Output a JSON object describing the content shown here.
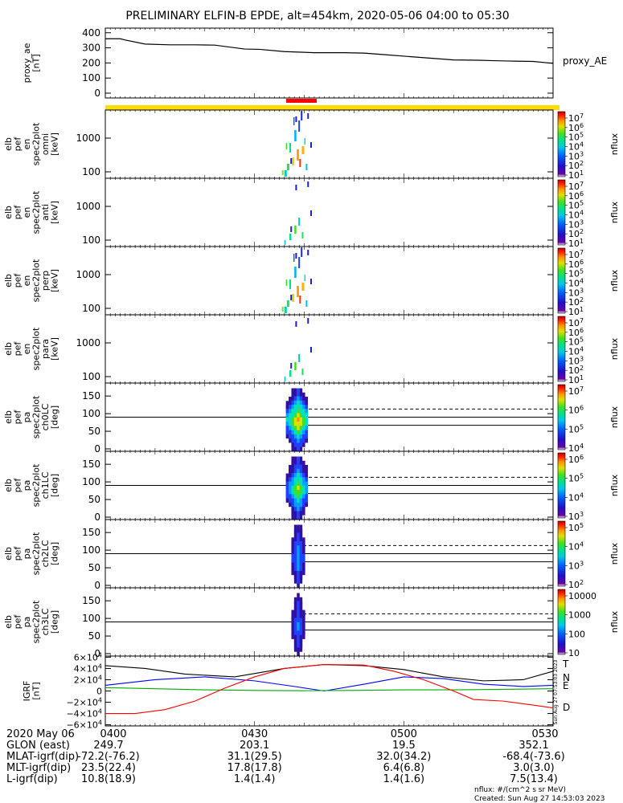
{
  "title": "PRELIMINARY ELFIN-B EPDE, alt=454km, 2020-05-06 04:00 to 05:30",
  "chart_data": [
    {
      "type": "line",
      "ylabel": [
        "proxy_ae",
        "[nT]"
      ],
      "side_label": "proxy_AE",
      "ylim": [
        0,
        420
      ],
      "yticks": [
        "400",
        "300",
        "200",
        "100",
        "0"
      ],
      "ytick_vals": [
        400,
        300,
        200,
        100,
        0
      ],
      "x": [
        0,
        3,
        4,
        8,
        13,
        18,
        22,
        28,
        31,
        36,
        42,
        48,
        52,
        56,
        62,
        66,
        70,
        75,
        78,
        82,
        86,
        90
      ],
      "values": [
        360,
        360,
        352,
        325,
        320,
        320,
        318,
        292,
        290,
        275,
        268,
        268,
        265,
        255,
        240,
        230,
        220,
        218,
        215,
        212,
        210,
        197
      ],
      "color": "#000000"
    },
    {
      "type": "heatmap",
      "ylabel": [
        "elb",
        "pef",
        "en",
        "spec2plot",
        "omni",
        "[keV]"
      ],
      "yticks": [
        "1000",
        "100"
      ],
      "colorbar_ticks": [
        "10^7",
        "10^6",
        "10^5",
        "10^4",
        "10^3",
        "10^2",
        "10^1"
      ],
      "colorbar_label": "nflux"
    },
    {
      "type": "heatmap",
      "ylabel": [
        "elb",
        "pef",
        "en",
        "spec2plot",
        "anti",
        "[keV]"
      ],
      "yticks": [
        "1000",
        "100"
      ],
      "colorbar_ticks": [
        "10^7",
        "10^6",
        "10^5",
        "10^4",
        "10^3",
        "10^2",
        "10^1"
      ],
      "colorbar_label": "nflux"
    },
    {
      "type": "heatmap",
      "ylabel": [
        "elb",
        "pef",
        "en",
        "spec2plot",
        "perp",
        "[keV]"
      ],
      "yticks": [
        "1000",
        "100"
      ],
      "colorbar_ticks": [
        "10^7",
        "10^6",
        "10^5",
        "10^4",
        "10^3",
        "10^2",
        "10^1"
      ],
      "colorbar_label": "nflux"
    },
    {
      "type": "heatmap",
      "ylabel": [
        "elb",
        "pef",
        "en",
        "spec2plot",
        "para",
        "[keV]"
      ],
      "yticks": [
        "1000",
        "100"
      ],
      "colorbar_ticks": [
        "10^7",
        "10^6",
        "10^5",
        "10^4",
        "10^3",
        "10^2",
        "10^1"
      ],
      "colorbar_label": "nflux"
    },
    {
      "type": "heatmap",
      "ylabel": [
        "elb",
        "pef",
        "pa",
        "spec2plot",
        "ch0LC",
        "[deg]"
      ],
      "yticks": [
        "150",
        "100",
        "50",
        "0"
      ],
      "colorbar_ticks": [
        "10^7",
        "10^6",
        "10^5",
        "10^4"
      ],
      "colorbar_label": "nflux"
    },
    {
      "type": "heatmap",
      "ylabel": [
        "elb",
        "pef",
        "pa",
        "spec2plot",
        "ch1LC",
        "[deg]"
      ],
      "yticks": [
        "150",
        "100",
        "50",
        "0"
      ],
      "colorbar_ticks": [
        "10^6",
        "10^5",
        "10^4",
        "10^3"
      ],
      "colorbar_label": "nflux"
    },
    {
      "type": "heatmap",
      "ylabel": [
        "elb",
        "pef",
        "pa",
        "spec2plot",
        "ch2LC",
        "[deg]"
      ],
      "yticks": [
        "150",
        "100",
        "50",
        "0"
      ],
      "colorbar_ticks": [
        "10^5",
        "10^4",
        "10^3",
        "10^2"
      ],
      "colorbar_label": "nflux"
    },
    {
      "type": "heatmap",
      "ylabel": [
        "elb",
        "pef",
        "pa",
        "spec2plot",
        "ch3LC",
        "[deg]"
      ],
      "yticks": [
        "150",
        "100",
        "50",
        "0"
      ],
      "colorbar_ticks": [
        "10000",
        "1000",
        "100",
        "10"
      ],
      "colorbar_label": "nflux"
    },
    {
      "type": "line",
      "ylabel": [
        "IGRF",
        "[nT]"
      ],
      "ylim": [
        -62000,
        62000
      ],
      "yticks": [
        "6×10^4",
        "4×10^4",
        "2×10^4",
        "0",
        "−2×10^4",
        "−4×10^4",
        "−6×10^4"
      ],
      "ytick_vals": [
        60000,
        40000,
        20000,
        0,
        -20000,
        -40000,
        -60000
      ],
      "series": [
        {
          "name": "T",
          "color": "#000000",
          "x": [
            0,
            8,
            16,
            26,
            36,
            44,
            52,
            60,
            68,
            76,
            84,
            90
          ],
          "values": [
            45000,
            40000,
            30000,
            25000,
            40000,
            47000,
            45000,
            38000,
            25000,
            18000,
            20000,
            35000
          ]
        },
        {
          "name": "N",
          "color": "#0000ff",
          "x": [
            0,
            10,
            20,
            30,
            38,
            44,
            52,
            60,
            68,
            76,
            84,
            90
          ],
          "values": [
            10000,
            20000,
            25000,
            18000,
            8000,
            0,
            12000,
            25000,
            22000,
            12000,
            8000,
            10000
          ]
        },
        {
          "name": "E",
          "color": "#00aa00",
          "x": [
            0,
            10,
            20,
            30,
            40,
            50,
            60,
            70,
            80,
            90
          ],
          "values": [
            6000,
            4000,
            2000,
            1000,
            500,
            1000,
            2000,
            2000,
            3000,
            4000
          ]
        },
        {
          "name": "D",
          "color": "#ff0000",
          "x": [
            0,
            6,
            12,
            18,
            24,
            30,
            36,
            44,
            52,
            58,
            64,
            70,
            74,
            80,
            86,
            90
          ],
          "values": [
            -40000,
            -40000,
            -33000,
            -18000,
            5000,
            25000,
            40000,
            47000,
            46000,
            35000,
            20000,
            0,
            -15000,
            -18000,
            -25000,
            -30000
          ]
        }
      ]
    }
  ],
  "time_axis": {
    "date": "2020 May 06",
    "ticks": [
      "0400",
      "0430",
      "0500",
      "0530"
    ]
  },
  "ephemeris": [
    {
      "label": "GLON (east)",
      "values": [
        "249.7",
        "203.1",
        "19.5",
        "352.1"
      ]
    },
    {
      "label": "MLAT-igrf(dip)",
      "values": [
        "-72.2(-76.2)",
        "31.1(29.5)",
        "32.0(34.2)",
        "-68.4(-73.6)"
      ]
    },
    {
      "label": "MLT-igrf(dip)",
      "values": [
        "23.5(22.4)",
        "17.8(17.8)",
        "6.4(6.8)",
        "3.0(3.0)"
      ]
    },
    {
      "label": "L-igrf(dip)",
      "values": [
        "10.8(18.9)",
        "1.4(1.4)",
        "1.4(1.6)",
        "7.5(13.4)"
      ]
    }
  ],
  "footer": {
    "units": "nflux: #/(cm^2 s sr MeV)",
    "created": "Created: Sun Aug 27 14:53:03 2023",
    "stamp": "Sun Aug 27 07:53:03 2023"
  },
  "colors": {
    "status_bar_yellow": "#ffdd00",
    "science_zone_red": "#ff0000"
  }
}
